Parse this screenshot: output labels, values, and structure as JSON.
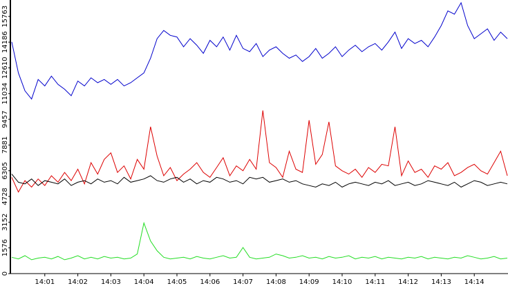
{
  "chart_data": {
    "type": "line",
    "x": [
      0,
      0.2,
      0.4,
      0.6,
      0.8,
      1,
      1.2,
      1.4,
      1.6,
      1.8,
      2,
      2.2,
      2.4,
      2.6,
      2.8,
      3,
      3.2,
      3.4,
      3.6,
      3.8,
      4,
      4.2,
      4.4,
      4.6,
      4.8,
      5,
      5.2,
      5.4,
      5.6,
      5.8,
      6,
      6.2,
      6.4,
      6.6,
      6.8,
      7,
      7.2,
      7.4,
      7.6,
      7.8,
      8,
      8.2,
      8.4,
      8.6,
      8.8,
      9,
      9.2,
      9.4,
      9.6,
      9.8,
      10,
      10.2,
      10.4,
      10.6,
      10.8,
      11,
      11.2,
      11.4,
      11.6,
      11.8,
      12,
      12.2,
      12.4,
      12.6,
      12.8,
      13,
      13.2,
      13.4,
      13.6,
      13.8,
      14,
      14.2,
      14.4,
      14.6,
      14.8,
      15
    ],
    "series": [
      {
        "color": "#0000cc",
        "values": [
          14200,
          12300,
          11200,
          10700,
          11900,
          11500,
          12100,
          11600,
          11300,
          10900,
          11800,
          11500,
          12000,
          11700,
          11900,
          11600,
          11900,
          11500,
          11700,
          12000,
          12300,
          13200,
          14400,
          14900,
          14600,
          14500,
          13900,
          14400,
          14000,
          13500,
          14300,
          13900,
          14500,
          13700,
          14600,
          13800,
          13600,
          14100,
          13300,
          13700,
          13900,
          13500,
          13200,
          13400,
          13000,
          13300,
          13800,
          13200,
          13500,
          13900,
          13300,
          13700,
          14000,
          13600,
          13900,
          14100,
          13700,
          14200,
          14800,
          13800,
          14400,
          14100,
          14300,
          13900,
          14500,
          15200,
          16100,
          15900,
          16600,
          15200,
          14400,
          14700,
          15000,
          14300,
          14800,
          14400
        ]
      },
      {
        "color": "#dd0000",
        "values": [
          5900,
          5000,
          5700,
          5300,
          5800,
          5400,
          6000,
          5600,
          6200,
          5700,
          6400,
          5500,
          6800,
          6100,
          7000,
          7400,
          6200,
          6600,
          5800,
          7000,
          6400,
          9000,
          7200,
          6000,
          6500,
          5700,
          6100,
          6400,
          6800,
          6200,
          5900,
          6500,
          7100,
          6000,
          6600,
          6300,
          7000,
          6400,
          10000,
          6800,
          6500,
          5900,
          7500,
          6400,
          6200,
          9400,
          6700,
          7300,
          9300,
          6600,
          6300,
          6100,
          6400,
          5900,
          6500,
          6200,
          6700,
          6600,
          9000,
          6000,
          6900,
          6200,
          6400,
          5900,
          6600,
          6400,
          6800,
          6000,
          6200,
          6500,
          6700,
          6300,
          6100,
          6800,
          7500,
          6000
        ]
      },
      {
        "color": "#000000",
        "values": [
          6100,
          5600,
          5500,
          5800,
          5400,
          5700,
          5600,
          5500,
          5800,
          5400,
          5600,
          5700,
          5500,
          5800,
          5600,
          5700,
          5500,
          5900,
          5600,
          5700,
          5800,
          6000,
          5700,
          5600,
          5800,
          5900,
          5600,
          5800,
          5500,
          5700,
          5600,
          5900,
          5800,
          5600,
          5700,
          5500,
          5900,
          5800,
          5900,
          5600,
          5700,
          5800,
          5600,
          5700,
          5500,
          5400,
          5300,
          5500,
          5400,
          5600,
          5300,
          5500,
          5600,
          5500,
          5400,
          5600,
          5500,
          5700,
          5400,
          5500,
          5600,
          5400,
          5500,
          5700,
          5600,
          5500,
          5400,
          5600,
          5300,
          5500,
          5700,
          5600,
          5400,
          5500,
          5600,
          5500
        ]
      },
      {
        "color": "#22dd22",
        "values": [
          1000,
          900,
          1100,
          850,
          950,
          1000,
          900,
          1050,
          850,
          950,
          1100,
          900,
          1000,
          900,
          1050,
          950,
          1000,
          900,
          950,
          1200,
          3100,
          2000,
          1400,
          1000,
          900,
          950,
          1000,
          900,
          1050,
          950,
          900,
          1000,
          1100,
          950,
          1000,
          1600,
          1000,
          900,
          950,
          1000,
          1200,
          1100,
          950,
          1000,
          1100,
          950,
          1000,
          900,
          1050,
          950,
          1000,
          1100,
          900,
          1000,
          950,
          1050,
          900,
          1000,
          950,
          900,
          1000,
          950,
          1050,
          900,
          1000,
          950,
          900,
          1000,
          950,
          1100,
          1000,
          900,
          950,
          1050,
          900,
          950
        ]
      }
    ],
    "xlim": [
      0,
      15
    ],
    "xticks": [
      {
        "value": 1,
        "label": "14:01"
      },
      {
        "value": 2,
        "label": "14:02"
      },
      {
        "value": 3,
        "label": "14:03"
      },
      {
        "value": 4,
        "label": "14:04"
      },
      {
        "value": 5,
        "label": "14:05"
      },
      {
        "value": 6,
        "label": "14:06"
      },
      {
        "value": 7,
        "label": "14:07"
      },
      {
        "value": 8,
        "label": "14:08"
      },
      {
        "value": 9,
        "label": "14:09"
      },
      {
        "value": 10,
        "label": "14:10"
      },
      {
        "value": 11,
        "label": "14:11"
      },
      {
        "value": 12,
        "label": "14:12"
      },
      {
        "value": 13,
        "label": "14:13"
      },
      {
        "value": 14,
        "label": "14:14"
      }
    ],
    "ylim": [
      0,
      16600
    ],
    "yticks": [
      0,
      1576,
      3152,
      4728,
      6305,
      7881,
      9457,
      11034,
      12610,
      14186,
      15763
    ]
  }
}
